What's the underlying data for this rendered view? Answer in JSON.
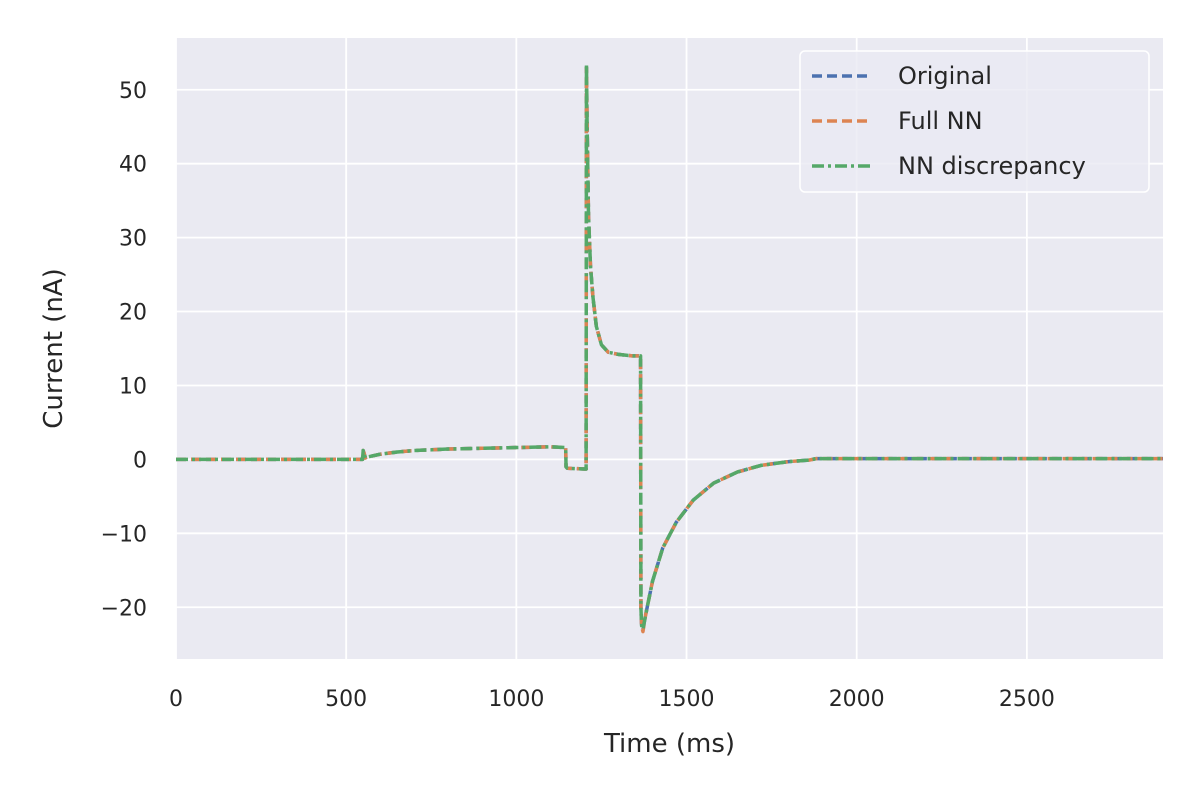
{
  "chart_data": {
    "type": "line",
    "title": "",
    "xlabel": "Time (ms)",
    "ylabel": "Current (nA)",
    "xlim": [
      0,
      2900
    ],
    "ylim": [
      -27,
      57
    ],
    "xticks": [
      0,
      500,
      1000,
      1500,
      2000,
      2500
    ],
    "yticks": [
      -20,
      -10,
      0,
      10,
      20,
      30,
      40,
      50
    ],
    "xtick_labels": [
      "0",
      "500",
      "1000",
      "1500",
      "2000",
      "2500"
    ],
    "ytick_labels": [
      "−20",
      "−10",
      "0",
      "10",
      "20",
      "30",
      "40",
      "50"
    ],
    "grid": true,
    "legend_position": "top-right",
    "series": [
      {
        "name": "Original",
        "color": "#4c72b0",
        "line_style": "dashed",
        "x": [
          0,
          100,
          200,
          300,
          400,
          500,
          548,
          550,
          553,
          556,
          560,
          570,
          600,
          650,
          700,
          800,
          900,
          1000,
          1100,
          1145,
          1146,
          1150,
          1200,
          1205,
          1206,
          1208,
          1212,
          1218,
          1225,
          1235,
          1250,
          1270,
          1300,
          1340,
          1365,
          1366,
          1368,
          1372,
          1380,
          1400,
          1430,
          1470,
          1520,
          1580,
          1650,
          1720,
          1800,
          1860,
          1880,
          2000,
          2200,
          2500,
          2900
        ],
        "y": [
          0,
          0,
          0,
          0,
          0,
          0,
          0,
          1.2,
          0.8,
          0.2,
          0.3,
          0.4,
          0.7,
          1.0,
          1.2,
          1.4,
          1.5,
          1.6,
          1.7,
          1.6,
          -1.0,
          -1.2,
          -1.3,
          -1.3,
          53,
          45,
          33,
          26,
          22,
          18,
          15.5,
          14.5,
          14.2,
          14.0,
          14.0,
          -20,
          -22.5,
          -23,
          -21,
          -16.5,
          -12,
          -8.5,
          -5.5,
          -3.2,
          -1.7,
          -0.8,
          -0.3,
          -0.1,
          0.1,
          0.1,
          0.1,
          0.1,
          0.1
        ]
      },
      {
        "name": "Full NN",
        "color": "#dd8452",
        "line_style": "dashed",
        "x": [
          0,
          100,
          200,
          300,
          400,
          500,
          548,
          550,
          553,
          556,
          560,
          570,
          600,
          650,
          700,
          800,
          900,
          1000,
          1100,
          1145,
          1146,
          1150,
          1200,
          1205,
          1206,
          1208,
          1212,
          1218,
          1225,
          1235,
          1250,
          1270,
          1300,
          1340,
          1365,
          1366,
          1368,
          1372,
          1380,
          1400,
          1430,
          1470,
          1520,
          1580,
          1650,
          1720,
          1800,
          1860,
          1880,
          2000,
          2200,
          2500,
          2900
        ],
        "y": [
          0,
          0,
          0,
          0,
          0,
          0,
          0,
          1.2,
          0.8,
          0.2,
          0.3,
          0.4,
          0.7,
          1.0,
          1.2,
          1.4,
          1.5,
          1.6,
          1.7,
          1.6,
          -1.0,
          -1.2,
          -1.3,
          -1.3,
          53,
          45,
          33,
          26,
          22,
          18,
          15.5,
          14.5,
          14.2,
          14.0,
          14.0,
          -20,
          -22.5,
          -23.3,
          -21,
          -16.5,
          -12,
          -8.5,
          -5.5,
          -3.2,
          -1.7,
          -0.8,
          -0.3,
          -0.1,
          0.1,
          0.1,
          0.1,
          0.1,
          0.1
        ]
      },
      {
        "name": "NN discrepancy",
        "color": "#55a868",
        "line_style": "dashdot",
        "x": [
          0,
          100,
          200,
          300,
          400,
          500,
          548,
          550,
          553,
          556,
          560,
          570,
          600,
          650,
          700,
          800,
          900,
          1000,
          1100,
          1145,
          1146,
          1150,
          1200,
          1205,
          1206,
          1208,
          1212,
          1218,
          1225,
          1235,
          1250,
          1270,
          1300,
          1340,
          1365,
          1366,
          1368,
          1372,
          1380,
          1400,
          1430,
          1470,
          1520,
          1580,
          1650,
          1720,
          1800,
          1860,
          1880,
          2000,
          2200,
          2500,
          2900
        ],
        "y": [
          0,
          0,
          0,
          0,
          0,
          0,
          0,
          1.2,
          0.8,
          0.2,
          0.3,
          0.4,
          0.7,
          1.0,
          1.2,
          1.4,
          1.5,
          1.6,
          1.7,
          1.6,
          -1.0,
          -1.2,
          -1.3,
          -1.3,
          53.5,
          45,
          33,
          26,
          22,
          18,
          15.5,
          14.5,
          14.2,
          14.0,
          14.0,
          -20,
          -22.5,
          -23,
          -21,
          -16.5,
          -12,
          -8.5,
          -5.5,
          -3.2,
          -1.7,
          -0.8,
          -0.3,
          -0.1,
          0.1,
          0.1,
          0.1,
          0.1,
          0.1
        ]
      }
    ]
  }
}
